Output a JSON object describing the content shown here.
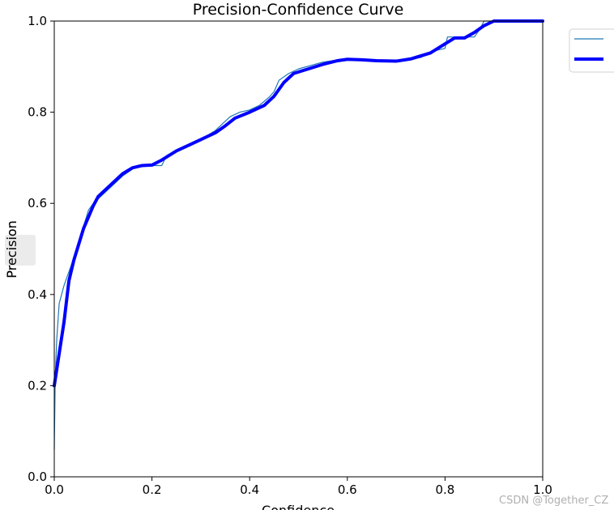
{
  "chart_data": {
    "type": "line",
    "title": "Precision-Confidence Curve",
    "xlabel": "Confidence",
    "ylabel": "Precision",
    "xlim": [
      0,
      1
    ],
    "ylim": [
      0,
      1
    ],
    "xticks": [
      "0.0",
      "0.2",
      "0.4",
      "0.6",
      "0.8",
      "1.0"
    ],
    "yticks": [
      "0.0",
      "0.2",
      "0.4",
      "0.6",
      "0.8",
      "1.0"
    ],
    "grid": false,
    "legend_position": "top-right",
    "series": [
      {
        "color": "#1f77b4",
        "line_width": "thin",
        "points": [
          [
            0.0,
            0.06
          ],
          [
            0.002,
            0.22
          ],
          [
            0.005,
            0.3
          ],
          [
            0.01,
            0.38
          ],
          [
            0.02,
            0.42
          ],
          [
            0.03,
            0.45
          ],
          [
            0.04,
            0.48
          ],
          [
            0.05,
            0.51
          ],
          [
            0.06,
            0.55
          ],
          [
            0.07,
            0.585
          ],
          [
            0.08,
            0.6
          ],
          [
            0.09,
            0.61
          ],
          [
            0.1,
            0.62
          ],
          [
            0.12,
            0.64
          ],
          [
            0.14,
            0.66
          ],
          [
            0.16,
            0.675
          ],
          [
            0.17,
            0.683
          ],
          [
            0.19,
            0.683
          ],
          [
            0.2,
            0.683
          ],
          [
            0.22,
            0.683
          ],
          [
            0.23,
            0.705
          ],
          [
            0.25,
            0.715
          ],
          [
            0.28,
            0.73
          ],
          [
            0.3,
            0.74
          ],
          [
            0.33,
            0.76
          ],
          [
            0.36,
            0.79
          ],
          [
            0.38,
            0.8
          ],
          [
            0.4,
            0.805
          ],
          [
            0.42,
            0.815
          ],
          [
            0.44,
            0.833
          ],
          [
            0.45,
            0.845
          ],
          [
            0.46,
            0.87
          ],
          [
            0.48,
            0.885
          ],
          [
            0.5,
            0.895
          ],
          [
            0.55,
            0.91
          ],
          [
            0.6,
            0.918
          ],
          [
            0.65,
            0.914
          ],
          [
            0.7,
            0.912
          ],
          [
            0.75,
            0.92
          ],
          [
            0.78,
            0.935
          ],
          [
            0.8,
            0.94
          ],
          [
            0.805,
            0.965
          ],
          [
            0.83,
            0.965
          ],
          [
            0.86,
            0.965
          ],
          [
            0.87,
            0.98
          ],
          [
            0.88,
            1.0
          ],
          [
            0.95,
            1.0
          ],
          [
            1.0,
            1.0
          ]
        ]
      },
      {
        "color": "#0000ff",
        "line_width": "thick",
        "points": [
          [
            0.0,
            0.2
          ],
          [
            0.01,
            0.27
          ],
          [
            0.02,
            0.34
          ],
          [
            0.03,
            0.43
          ],
          [
            0.04,
            0.475
          ],
          [
            0.05,
            0.51
          ],
          [
            0.06,
            0.545
          ],
          [
            0.07,
            0.57
          ],
          [
            0.08,
            0.595
          ],
          [
            0.09,
            0.615
          ],
          [
            0.1,
            0.625
          ],
          [
            0.12,
            0.645
          ],
          [
            0.14,
            0.665
          ],
          [
            0.16,
            0.678
          ],
          [
            0.18,
            0.683
          ],
          [
            0.2,
            0.684
          ],
          [
            0.22,
            0.695
          ],
          [
            0.25,
            0.715
          ],
          [
            0.28,
            0.73
          ],
          [
            0.3,
            0.74
          ],
          [
            0.33,
            0.755
          ],
          [
            0.35,
            0.77
          ],
          [
            0.37,
            0.787
          ],
          [
            0.4,
            0.8
          ],
          [
            0.43,
            0.815
          ],
          [
            0.45,
            0.835
          ],
          [
            0.47,
            0.865
          ],
          [
            0.49,
            0.885
          ],
          [
            0.52,
            0.895
          ],
          [
            0.55,
            0.905
          ],
          [
            0.58,
            0.913
          ],
          [
            0.6,
            0.916
          ],
          [
            0.63,
            0.915
          ],
          [
            0.66,
            0.913
          ],
          [
            0.7,
            0.912
          ],
          [
            0.73,
            0.917
          ],
          [
            0.77,
            0.93
          ],
          [
            0.8,
            0.95
          ],
          [
            0.82,
            0.963
          ],
          [
            0.84,
            0.963
          ],
          [
            0.86,
            0.975
          ],
          [
            0.88,
            0.99
          ],
          [
            0.9,
            1.0
          ],
          [
            0.95,
            1.0
          ],
          [
            1.0,
            1.0
          ]
        ]
      }
    ]
  },
  "watermark": "CSDN @Together_CZ"
}
